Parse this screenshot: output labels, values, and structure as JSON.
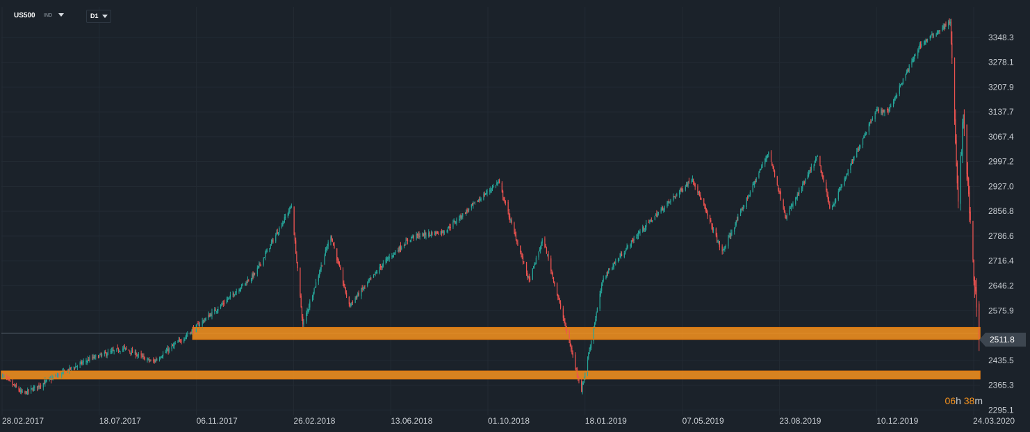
{
  "toolbar": {
    "symbol": "US500",
    "symbol_type": "IND",
    "timeframe": "D1"
  },
  "countdown": {
    "hours": "06",
    "h_unit": "h",
    "minutes": "38",
    "m_unit": "m"
  },
  "current_price_label": "2511.8",
  "colors": {
    "background": "#1b222a",
    "grid": "#232b34",
    "bull": "#26a69a",
    "bear": "#ef5350",
    "zone_fill": "#f7931e",
    "zone_border": "#e07b12",
    "axis_text": "#c9ced3",
    "accent": "#f7931e"
  },
  "chart_data": {
    "type": "candlestick",
    "symbol": "US500",
    "timeframe": "D1",
    "x_tick_labels": [
      "28.02.2017",
      "18.07.2017",
      "06.11.2017",
      "26.02.2018",
      "13.06.2018",
      "01.10.2018",
      "18.01.2019",
      "07.05.2019",
      "23.08.2019",
      "10.12.2019",
      "24.03.2020"
    ],
    "y_tick_labels": [
      "3348.3",
      "3278.1",
      "3207.9",
      "3137.7",
      "3067.4",
      "2997.2",
      "2927.0",
      "2856.8",
      "2786.6",
      "2716.4",
      "2646.2",
      "2575.9",
      "2511.8",
      "2435.5",
      "2365.3",
      "2295.1"
    ],
    "ylim": [
      2280,
      3395
    ],
    "grid": true,
    "current_price": 2511.8,
    "path_points": [
      {
        "date": "2017-02-28",
        "price": 2395
      },
      {
        "date": "2017-03-25",
        "price": 2340
      },
      {
        "date": "2017-05-01",
        "price": 2390
      },
      {
        "date": "2017-06-10",
        "price": 2440
      },
      {
        "date": "2017-07-18",
        "price": 2470
      },
      {
        "date": "2017-08-20",
        "price": 2430
      },
      {
        "date": "2017-09-25",
        "price": 2500
      },
      {
        "date": "2017-11-06",
        "price": 2590
      },
      {
        "date": "2017-12-15",
        "price": 2680
      },
      {
        "date": "2018-01-26",
        "price": 2872
      },
      {
        "date": "2018-02-08",
        "price": 2535
      },
      {
        "date": "2018-03-12",
        "price": 2790
      },
      {
        "date": "2018-04-02",
        "price": 2590
      },
      {
        "date": "2018-05-15",
        "price": 2720
      },
      {
        "date": "2018-06-13",
        "price": 2785
      },
      {
        "date": "2018-07-20",
        "price": 2800
      },
      {
        "date": "2018-09-20",
        "price": 2940
      },
      {
        "date": "2018-10-25",
        "price": 2660
      },
      {
        "date": "2018-11-10",
        "price": 2780
      },
      {
        "date": "2018-12-24",
        "price": 2350
      },
      {
        "date": "2019-01-18",
        "price": 2670
      },
      {
        "date": "2019-03-01",
        "price": 2800
      },
      {
        "date": "2019-04-30",
        "price": 2950
      },
      {
        "date": "2019-06-03",
        "price": 2740
      },
      {
        "date": "2019-07-26",
        "price": 3025
      },
      {
        "date": "2019-08-15",
        "price": 2840
      },
      {
        "date": "2019-09-20",
        "price": 3010
      },
      {
        "date": "2019-10-05",
        "price": 2860
      },
      {
        "date": "2019-11-25",
        "price": 3140
      },
      {
        "date": "2019-12-10",
        "price": 3140
      },
      {
        "date": "2020-01-15",
        "price": 3325
      },
      {
        "date": "2020-02-19",
        "price": 3393
      },
      {
        "date": "2020-02-28",
        "price": 2870
      },
      {
        "date": "2020-03-05",
        "price": 3130
      },
      {
        "date": "2020-03-16",
        "price": 2700
      },
      {
        "date": "2020-03-23",
        "price": 2512
      }
    ],
    "zones": [
      {
        "from": 2495,
        "to": 2528,
        "start_date": "2017-10-05",
        "end_date": "2020-03-24"
      },
      {
        "from": 2383,
        "to": 2405,
        "start_date": "2017-02-28",
        "end_date": "2020-03-24"
      }
    ],
    "last_price_line_start_date": "2017-02-28"
  }
}
